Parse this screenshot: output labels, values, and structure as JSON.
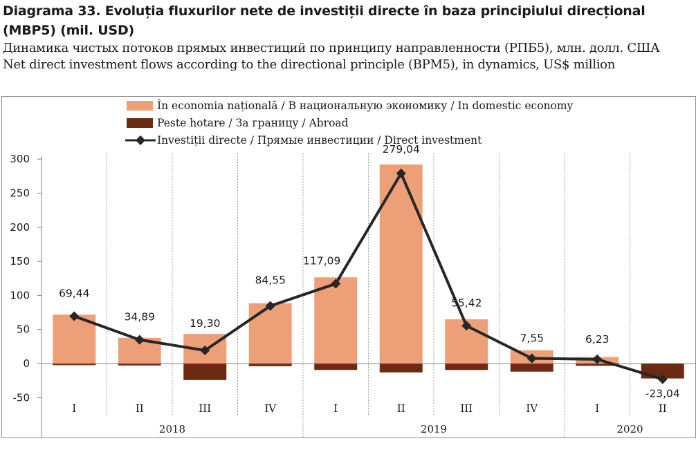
{
  "header": {
    "title_ro": "Diagrama 33. Evoluția fluxurilor nete de investiții directe în baza principiului direcțional (MBP5) (mil. USD)",
    "title_ru": "Динамика чистых потоков прямых инвестиций по принципу направленности (РПБ5), млн. долл. США",
    "title_en": "Net direct investment flows according to the directional principle (BPM5), in dynamics, US$ million"
  },
  "colors": {
    "domestic": "#eda078",
    "abroad": "#6b2b12",
    "line": "#262626",
    "axis": "#7f7f7f",
    "grid": "#9a9a9a"
  },
  "chart_data": {
    "type": "bar",
    "legend": [
      {
        "key": "domestic",
        "label": "În economia națională / В национальную экономику / In domestic economy",
        "marker": "bar"
      },
      {
        "key": "abroad",
        "label": "Peste hotare / За границу / Abroad",
        "marker": "bar"
      },
      {
        "key": "direct",
        "label": "Investiții directe / Прямые инвестиции / Direct investment",
        "marker": "line"
      }
    ],
    "legend_position": "top-center",
    "categories": [
      "I",
      "II",
      "III",
      "IV",
      "I",
      "II",
      "III",
      "IV",
      "I",
      "II"
    ],
    "years": [
      {
        "label": "2018",
        "start": 0,
        "end": 3
      },
      {
        "label": "2019",
        "start": 4,
        "end": 7
      },
      {
        "label": "2020",
        "start": 8,
        "end": 9
      }
    ],
    "series": [
      {
        "key": "domestic",
        "type": "bar",
        "stack": "a",
        "values": [
          71.8,
          37.7,
          43.5,
          88.5,
          126.5,
          292.0,
          64.9,
          19.4,
          9.5,
          -1.1
        ]
      },
      {
        "key": "abroad",
        "type": "bar",
        "stack": "b",
        "values": [
          -2.4,
          -2.8,
          -24.2,
          -3.9,
          -9.4,
          -13.0,
          -9.5,
          -11.9,
          -3.3,
          -21.9
        ]
      },
      {
        "key": "direct",
        "type": "line",
        "values": [
          69.44,
          34.89,
          19.3,
          84.55,
          117.09,
          279.04,
          55.42,
          7.55,
          6.23,
          -23.04
        ]
      }
    ],
    "data_labels": [
      "69,44",
      "34,89",
      "19,30",
      "84,55",
      "117,09",
      "279,04",
      "55,42",
      "7,55",
      "6,23",
      "-23,04"
    ],
    "y_ticks": [
      -50,
      0,
      50,
      100,
      150,
      200,
      250,
      300
    ],
    "ylim": [
      -50,
      300
    ],
    "xlabel": "",
    "ylabel": "",
    "grid": "vertical dotted separators"
  }
}
